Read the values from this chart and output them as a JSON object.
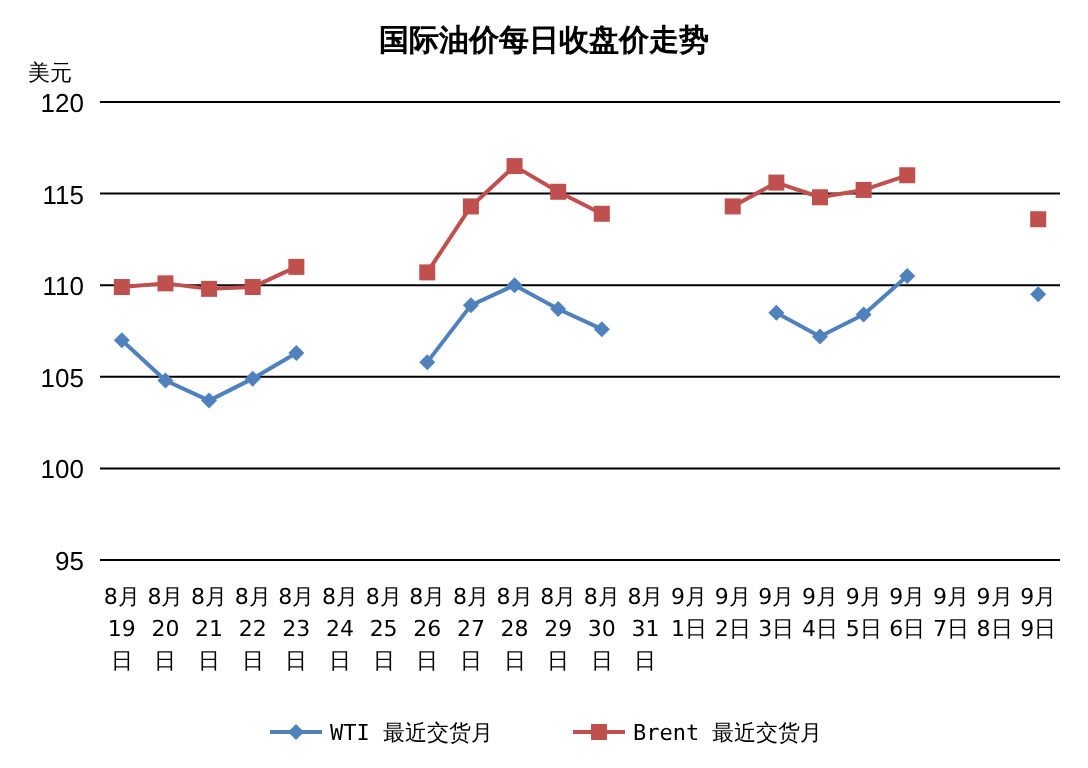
{
  "chart_data": {
    "type": "line",
    "title": "国际油价每日收盘价走势",
    "ylabel": "美元",
    "categories": [
      "8月19日",
      "8月20日",
      "8月21日",
      "8月22日",
      "8月23日",
      "8月24日",
      "8月25日",
      "8月26日",
      "8月27日",
      "8月28日",
      "8月29日",
      "8月30日",
      "8月31日",
      "9月1日",
      "9月2日",
      "9月3日",
      "9月4日",
      "9月5日",
      "9月6日",
      "9月7日",
      "9月8日",
      "9月9日"
    ],
    "series": [
      {
        "name": "WTI 最近交货月",
        "color": "#4f81bd",
        "marker": "diamond",
        "values": [
          107.0,
          104.8,
          103.7,
          104.9,
          106.3,
          null,
          null,
          105.8,
          108.9,
          110.0,
          108.7,
          107.6,
          null,
          null,
          null,
          108.5,
          107.2,
          108.4,
          110.5,
          null,
          null,
          109.5
        ]
      },
      {
        "name": "Brent 最近交货月",
        "color": "#c0504d",
        "marker": "square",
        "values": [
          109.9,
          110.1,
          109.8,
          109.9,
          111.0,
          null,
          null,
          110.7,
          114.3,
          116.5,
          115.1,
          113.9,
          null,
          null,
          114.3,
          115.6,
          114.8,
          115.2,
          116.0,
          null,
          null,
          113.6
        ]
      }
    ],
    "ylim": [
      95,
      120
    ],
    "yticks": [
      95,
      100,
      105,
      110,
      115,
      120
    ],
    "grid": "y",
    "legend": "bottom"
  }
}
